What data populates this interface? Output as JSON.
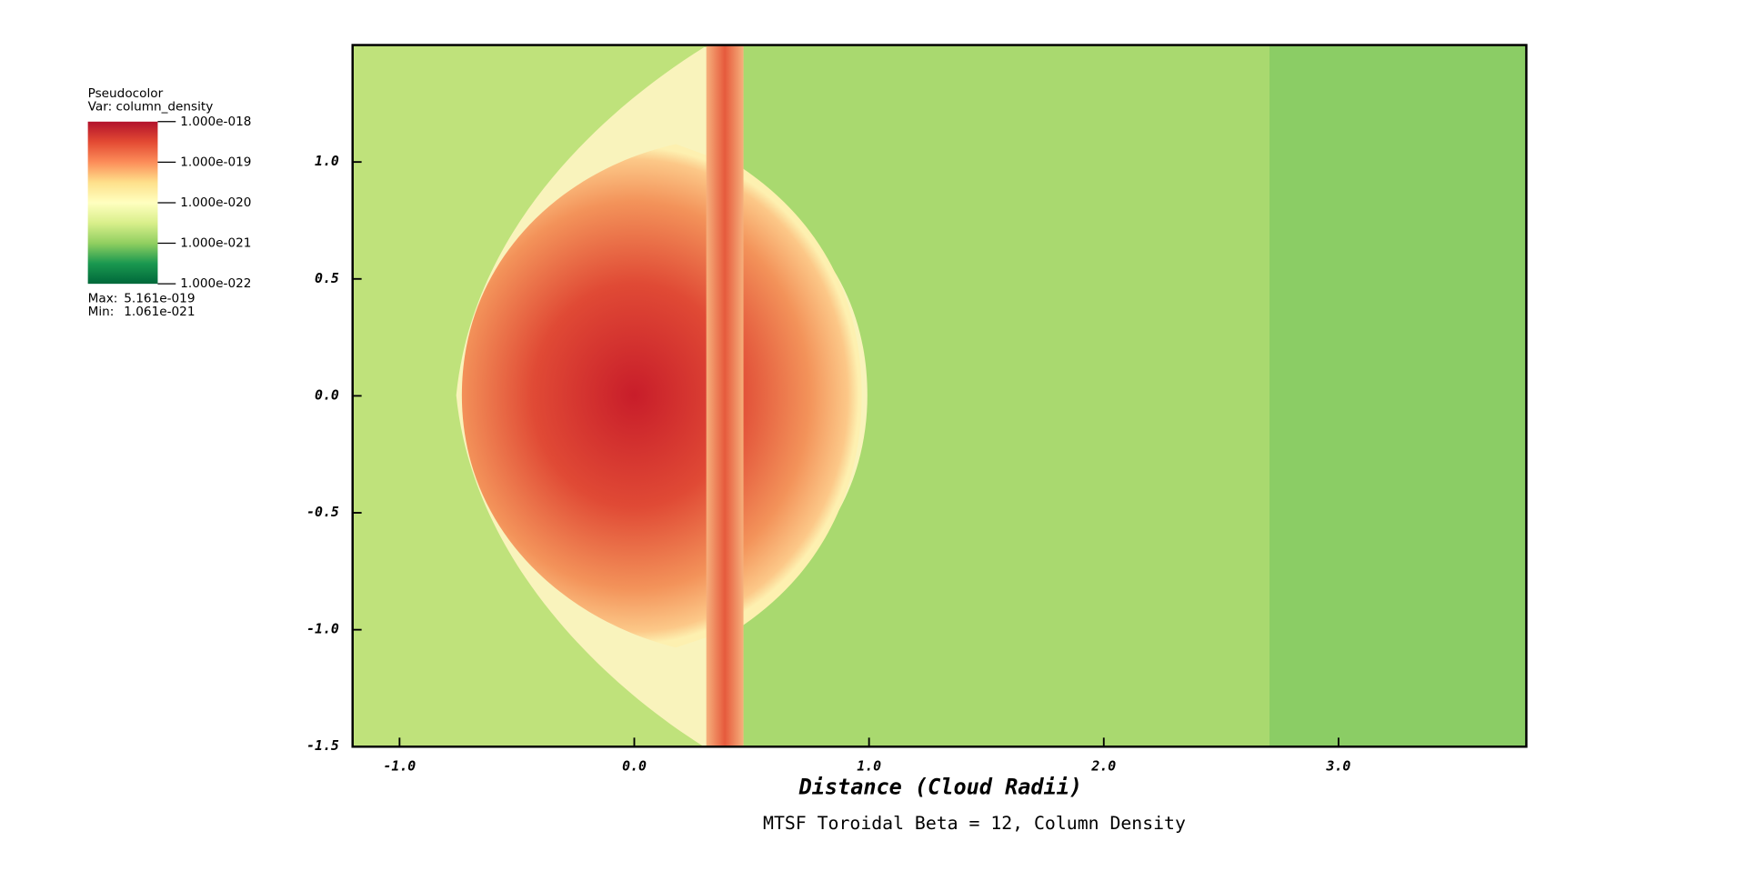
{
  "chart_data": {
    "type": "pseudocolor",
    "title": "MTSF Toroidal Beta = 12, Column Density",
    "x_label": "Distance (Cloud Radii)",
    "xlim": [
      -1.2,
      3.8
    ],
    "ylim": [
      -1.5,
      1.5
    ],
    "xticks": [
      {
        "value": -1,
        "label": "-1.0"
      },
      {
        "value": 0,
        "label": "0.0"
      },
      {
        "value": 1,
        "label": "1.0"
      },
      {
        "value": 2,
        "label": "2.0"
      },
      {
        "value": 3,
        "label": "3.0"
      }
    ],
    "yticks": [
      {
        "value": -1.5,
        "label": "-1.5"
      },
      {
        "value": -1,
        "label": "-1.0"
      },
      {
        "value": -0.5,
        "label": "-0.5"
      },
      {
        "value": 0,
        "label": "0.0"
      },
      {
        "value": 0.5,
        "label": "0.5"
      },
      {
        "value": 1,
        "label": "1.0"
      }
    ],
    "legend": {
      "title": "Pseudocolor",
      "variable": "Var: column_density",
      "log": true,
      "range": [
        1e-22,
        1e-18
      ],
      "colormap": [
        "#00683a",
        "#1a9850",
        "#91cf60",
        "#d9ef8b",
        "#ffffbf",
        "#fee08b",
        "#fc8d59",
        "#e34a33",
        "#b2112b"
      ],
      "ticks": [
        {
          "value": 1e-18,
          "label": "1.000e-018"
        },
        {
          "value": 1e-19,
          "label": "1.000e-019"
        },
        {
          "value": 1e-20,
          "label": "1.000e-020"
        },
        {
          "value": 1e-21,
          "label": "1.000e-021"
        },
        {
          "value": 1e-22,
          "label": "1.000e-022"
        }
      ],
      "max_label": "Max:",
      "max": {
        "value": 5.161e-19,
        "label": "5.161e-019"
      },
      "min_label": "Min:",
      "min": {
        "value": 1.061e-21,
        "label": "1.061e-021"
      }
    }
  }
}
